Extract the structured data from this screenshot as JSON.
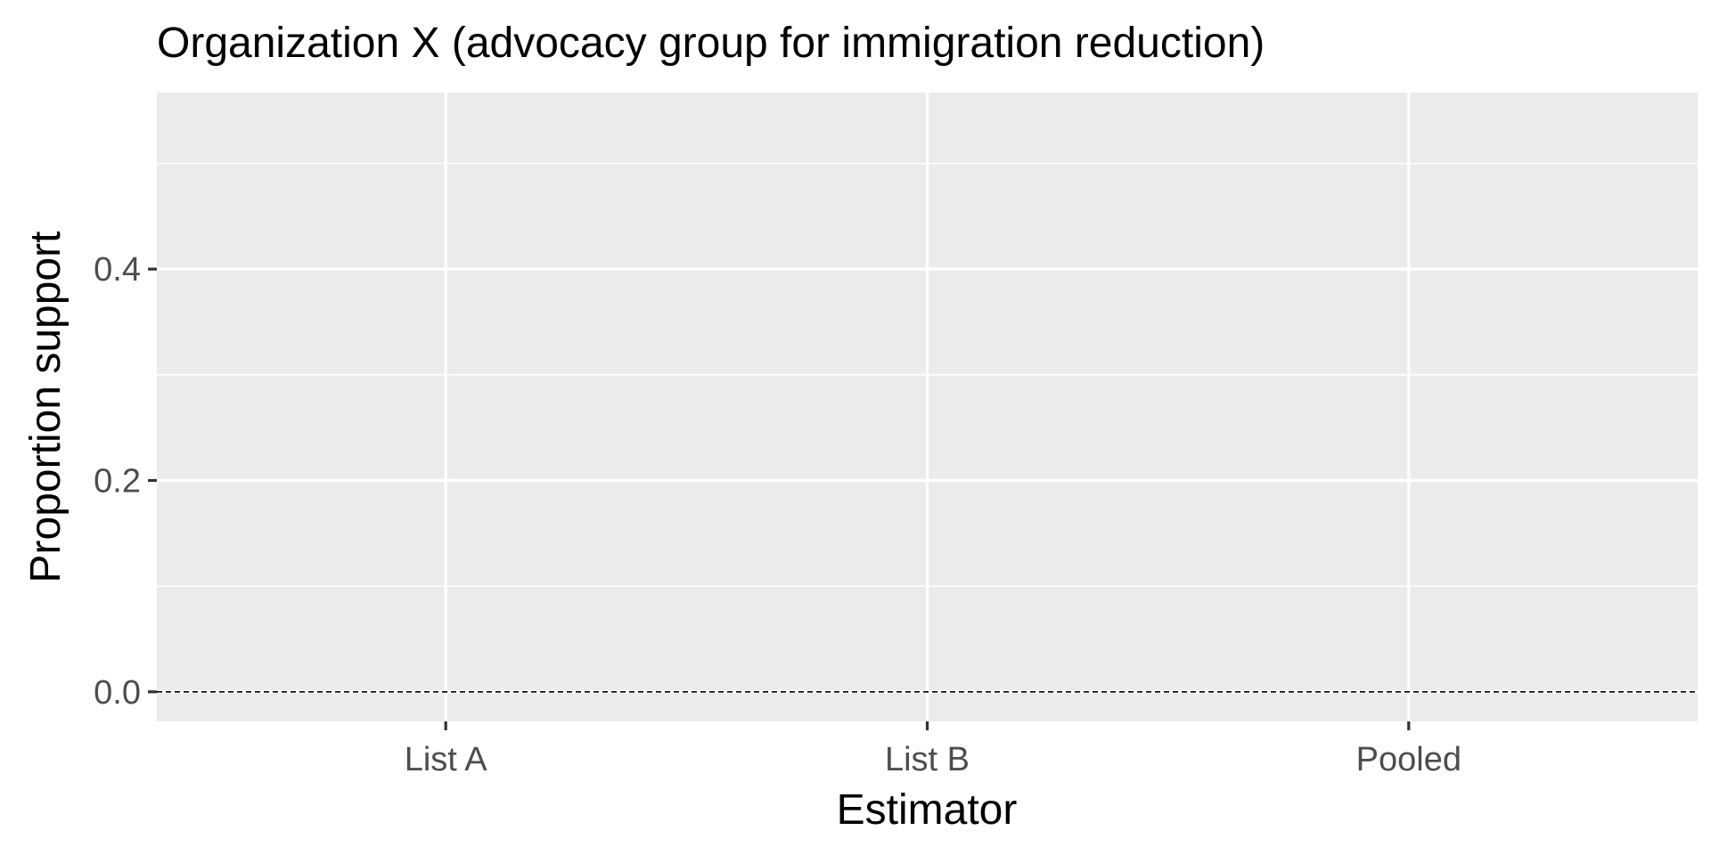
{
  "chart_data": {
    "type": "scatter",
    "title": "Organization X (advocacy group for immigration reduction)",
    "xlabel": "Estimator",
    "ylabel": "Proportion support",
    "categories": [
      "List A",
      "List B",
      "Pooled"
    ],
    "series": [
      {
        "values": [
          null,
          null,
          null
        ]
      }
    ],
    "y_ticks": [
      0.0,
      0.2,
      0.4
    ],
    "y_tick_labels": [
      "0.0",
      "0.2",
      "0.4"
    ],
    "y_minor_ticks": [
      0.1,
      0.3,
      0.5
    ],
    "ylim": [
      -0.028,
      0.567
    ],
    "reference_line": {
      "y": 0,
      "style": "dashed",
      "color": "#000000"
    },
    "grid": true,
    "panel_background": "#ebebeb",
    "grid_color": "#ffffff",
    "legend": "none"
  }
}
